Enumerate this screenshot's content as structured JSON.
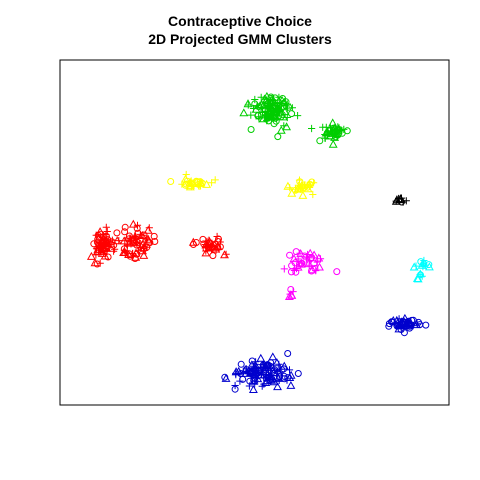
{
  "chart_data": {
    "type": "scatter",
    "title": "Contraceptive Choice",
    "subtitle": "2D Projected GMM Clusters",
    "xlabel": "",
    "ylabel": "",
    "grid": false,
    "legend": "none",
    "axes_ticks": "none",
    "marker_symbols": [
      "circle",
      "triangle",
      "plus"
    ],
    "xlim": [
      0,
      100
    ],
    "ylim": [
      0,
      100
    ],
    "clusters": [
      {
        "name": "",
        "color": "#00CD00",
        "centers": [
          [
            54.5,
            85.5
          ],
          [
            70,
            79
          ]
        ],
        "spreads": [
          [
            5,
            5
          ],
          [
            3.5,
            2.5
          ]
        ],
        "counts": [
          120,
          45
        ]
      },
      {
        "name": "",
        "color": "#FFFF00",
        "centers": [
          [
            34,
            64.5
          ],
          [
            62,
            63
          ]
        ],
        "spreads": [
          [
            4.5,
            1.5
          ],
          [
            4,
            1.8
          ]
        ],
        "counts": [
          30,
          28
        ]
      },
      {
        "name": "",
        "color": "#000000",
        "centers": [
          [
            87.5,
            59.5
          ]
        ],
        "spreads": [
          [
            1.2,
            1
          ]
        ],
        "counts": [
          10
        ]
      },
      {
        "name": "",
        "color": "#FF0000",
        "centers": [
          [
            11,
            47
          ],
          [
            19.5,
            47
          ],
          [
            39,
            45.5
          ]
        ],
        "spreads": [
          [
            3,
            5
          ],
          [
            5,
            5
          ],
          [
            4,
            3
          ]
        ],
        "counts": [
          70,
          70,
          40
        ]
      },
      {
        "name": "",
        "color": "#FF00FF",
        "centers": [
          [
            63,
            41
          ],
          [
            59,
            32
          ]
        ],
        "spreads": [
          [
            5,
            3
          ],
          [
            1.5,
            1
          ]
        ],
        "counts": [
          40,
          6
        ]
      },
      {
        "name": "",
        "color": "#00FFFF",
        "centers": [
          [
            93,
            40.5
          ],
          [
            92.5,
            37
          ]
        ],
        "spreads": [
          [
            2,
            1.5
          ],
          [
            1,
            1
          ]
        ],
        "counts": [
          12,
          6
        ]
      },
      {
        "name": "",
        "color": "#0000CD",
        "centers": [
          [
            88.5,
            23.5
          ],
          [
            52,
            9
          ]
        ],
        "spreads": [
          [
            3.5,
            1.5
          ],
          [
            7,
            4
          ]
        ],
        "counts": [
          50,
          120
        ]
      }
    ]
  }
}
